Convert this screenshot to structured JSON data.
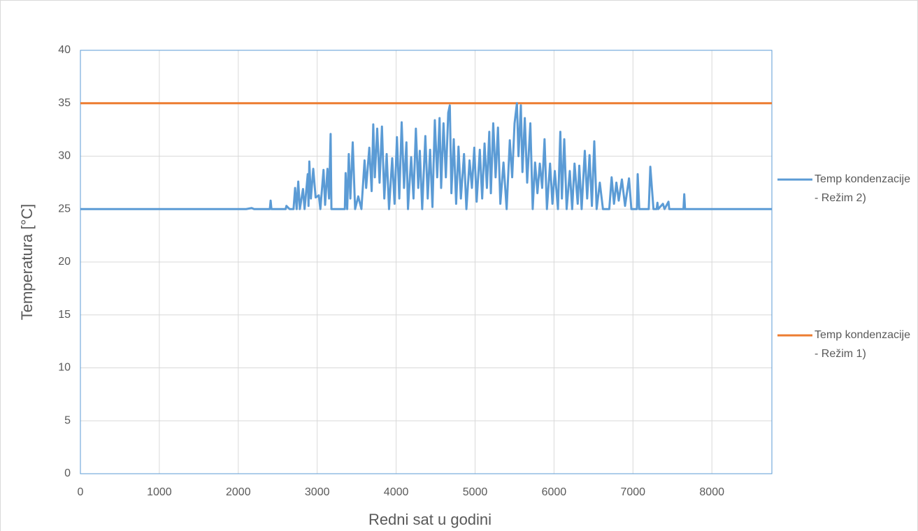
{
  "chart_data": {
    "type": "line",
    "x_label": "Redni sat u godini",
    "y_label": "Temperatura [°C]",
    "xlim": [
      0,
      8760
    ],
    "xticks": [
      0,
      1000,
      2000,
      3000,
      4000,
      5000,
      6000,
      7000,
      8000
    ],
    "ylim": [
      0,
      40
    ],
    "yticks": [
      0,
      5,
      10,
      15,
      20,
      25,
      30,
      35,
      40
    ],
    "grid": true,
    "legend": "right",
    "series": [
      {
        "name": "Temp kondenzacije - Režim 2)",
        "color": "#5b9bd5",
        "x": [
          0,
          2100,
          2170,
          2200,
          2400,
          2410,
          2420,
          2600,
          2610,
          2650,
          2700,
          2720,
          2740,
          2760,
          2780,
          2820,
          2840,
          2880,
          2890,
          2900,
          2920,
          2950,
          2980,
          3020,
          3040,
          3080,
          3100,
          3130,
          3150,
          3170,
          3180,
          3350,
          3360,
          3380,
          3400,
          3420,
          3450,
          3480,
          3520,
          3560,
          3600,
          3620,
          3660,
          3690,
          3710,
          3730,
          3760,
          3790,
          3820,
          3850,
          3880,
          3910,
          3950,
          3980,
          4010,
          4040,
          4070,
          4100,
          4130,
          4150,
          4190,
          4220,
          4250,
          4280,
          4300,
          4330,
          4370,
          4400,
          4430,
          4460,
          4490,
          4520,
          4550,
          4570,
          4600,
          4630,
          4660,
          4680,
          4700,
          4730,
          4760,
          4790,
          4820,
          4860,
          4890,
          4930,
          4960,
          4990,
          5020,
          5060,
          5090,
          5120,
          5150,
          5180,
          5200,
          5230,
          5260,
          5290,
          5320,
          5360,
          5400,
          5440,
          5470,
          5500,
          5530,
          5550,
          5580,
          5600,
          5630,
          5660,
          5700,
          5730,
          5760,
          5790,
          5820,
          5850,
          5880,
          5910,
          5950,
          5980,
          6010,
          6050,
          6080,
          6100,
          6130,
          6160,
          6200,
          6230,
          6260,
          6300,
          6320,
          6350,
          6390,
          6420,
          6450,
          6480,
          6510,
          6540,
          6580,
          6620,
          6700,
          6730,
          6760,
          6790,
          6820,
          6860,
          6900,
          6950,
          6980,
          7050,
          7060,
          7080,
          7200,
          7220,
          7240,
          7260,
          7300,
          7310,
          7320,
          7380,
          7400,
          7450,
          7460,
          7640,
          7650,
          7660,
          8760
        ],
        "values": [
          25,
          25,
          25.1,
          25,
          25,
          25.8,
          25,
          25,
          25.3,
          25,
          25,
          27,
          25,
          27.6,
          25,
          26.9,
          25,
          28.3,
          25.3,
          29.5,
          26,
          28.8,
          26.1,
          26.3,
          25,
          28.7,
          25.4,
          28.8,
          26,
          32.1,
          25,
          25,
          28.4,
          25,
          30.2,
          26,
          31.3,
          25,
          26.2,
          25,
          29.6,
          27,
          30.8,
          26.7,
          33,
          28,
          32.6,
          27.5,
          32.8,
          26,
          30.2,
          25,
          29.8,
          25.5,
          31.8,
          26,
          33.2,
          27,
          31.3,
          25,
          29.9,
          26,
          32.6,
          27,
          30.5,
          25,
          31.9,
          26,
          30.6,
          25.2,
          33.4,
          28,
          33.6,
          27,
          33.1,
          28,
          34.1,
          34.8,
          26.5,
          31.6,
          25.5,
          30.9,
          26,
          30.2,
          25,
          29.6,
          27,
          30.8,
          25.7,
          30.6,
          26,
          31.2,
          27,
          32.3,
          26.5,
          33.1,
          28,
          32.7,
          25.5,
          29.4,
          25,
          31.5,
          28,
          33.1,
          35,
          30,
          34.8,
          28.5,
          33.6,
          27.5,
          33.1,
          25,
          29.4,
          26.5,
          29.3,
          27,
          31.6,
          25,
          29.3,
          25.5,
          28.6,
          25,
          32.3,
          26,
          31.6,
          25,
          28.6,
          25,
          29.3,
          25.5,
          29.1,
          25,
          30.5,
          26,
          30.1,
          25.3,
          31.4,
          25,
          27.5,
          25,
          25,
          28,
          25.5,
          27.5,
          25.8,
          27.8,
          25.3,
          27.9,
          25,
          25,
          28.3,
          25,
          25,
          29,
          27,
          25,
          25,
          25.6,
          25,
          25.5,
          25,
          25.7,
          25,
          25,
          26.4,
          25,
          25
        ]
      },
      {
        "name": "Temp kondenzacije - Režim 1)",
        "color": "#ed7d31",
        "x": [
          0,
          8760
        ],
        "values": [
          35,
          35
        ]
      }
    ]
  }
}
